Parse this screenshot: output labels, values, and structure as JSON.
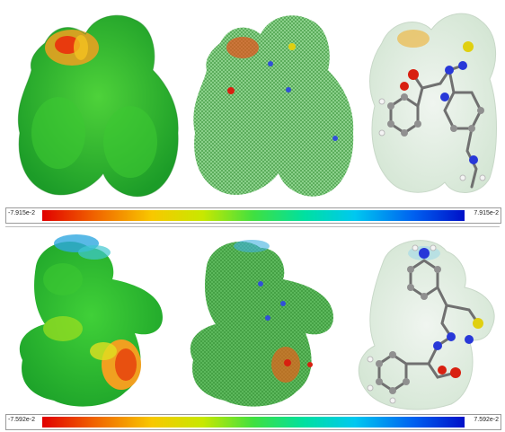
{
  "scales": [
    {
      "min_label": "-7.915e-2",
      "max_label": "7.915e-2"
    },
    {
      "min_label": "-7.592e-2",
      "max_label": "7.592e-2"
    }
  ],
  "colors": {
    "surface_green": "#2ed12a",
    "surface_red": "#e44a10",
    "surface_yellow": "#f0d020",
    "surface_blue": "#28a8e8",
    "mesh_green": "#3aa83a",
    "atom_carbon": "#8a8a8a",
    "atom_oxygen": "#e02010",
    "atom_nitrogen": "#2838d8",
    "atom_sulfur": "#e0d010",
    "atom_hydrogen": "#f4f4f4"
  }
}
